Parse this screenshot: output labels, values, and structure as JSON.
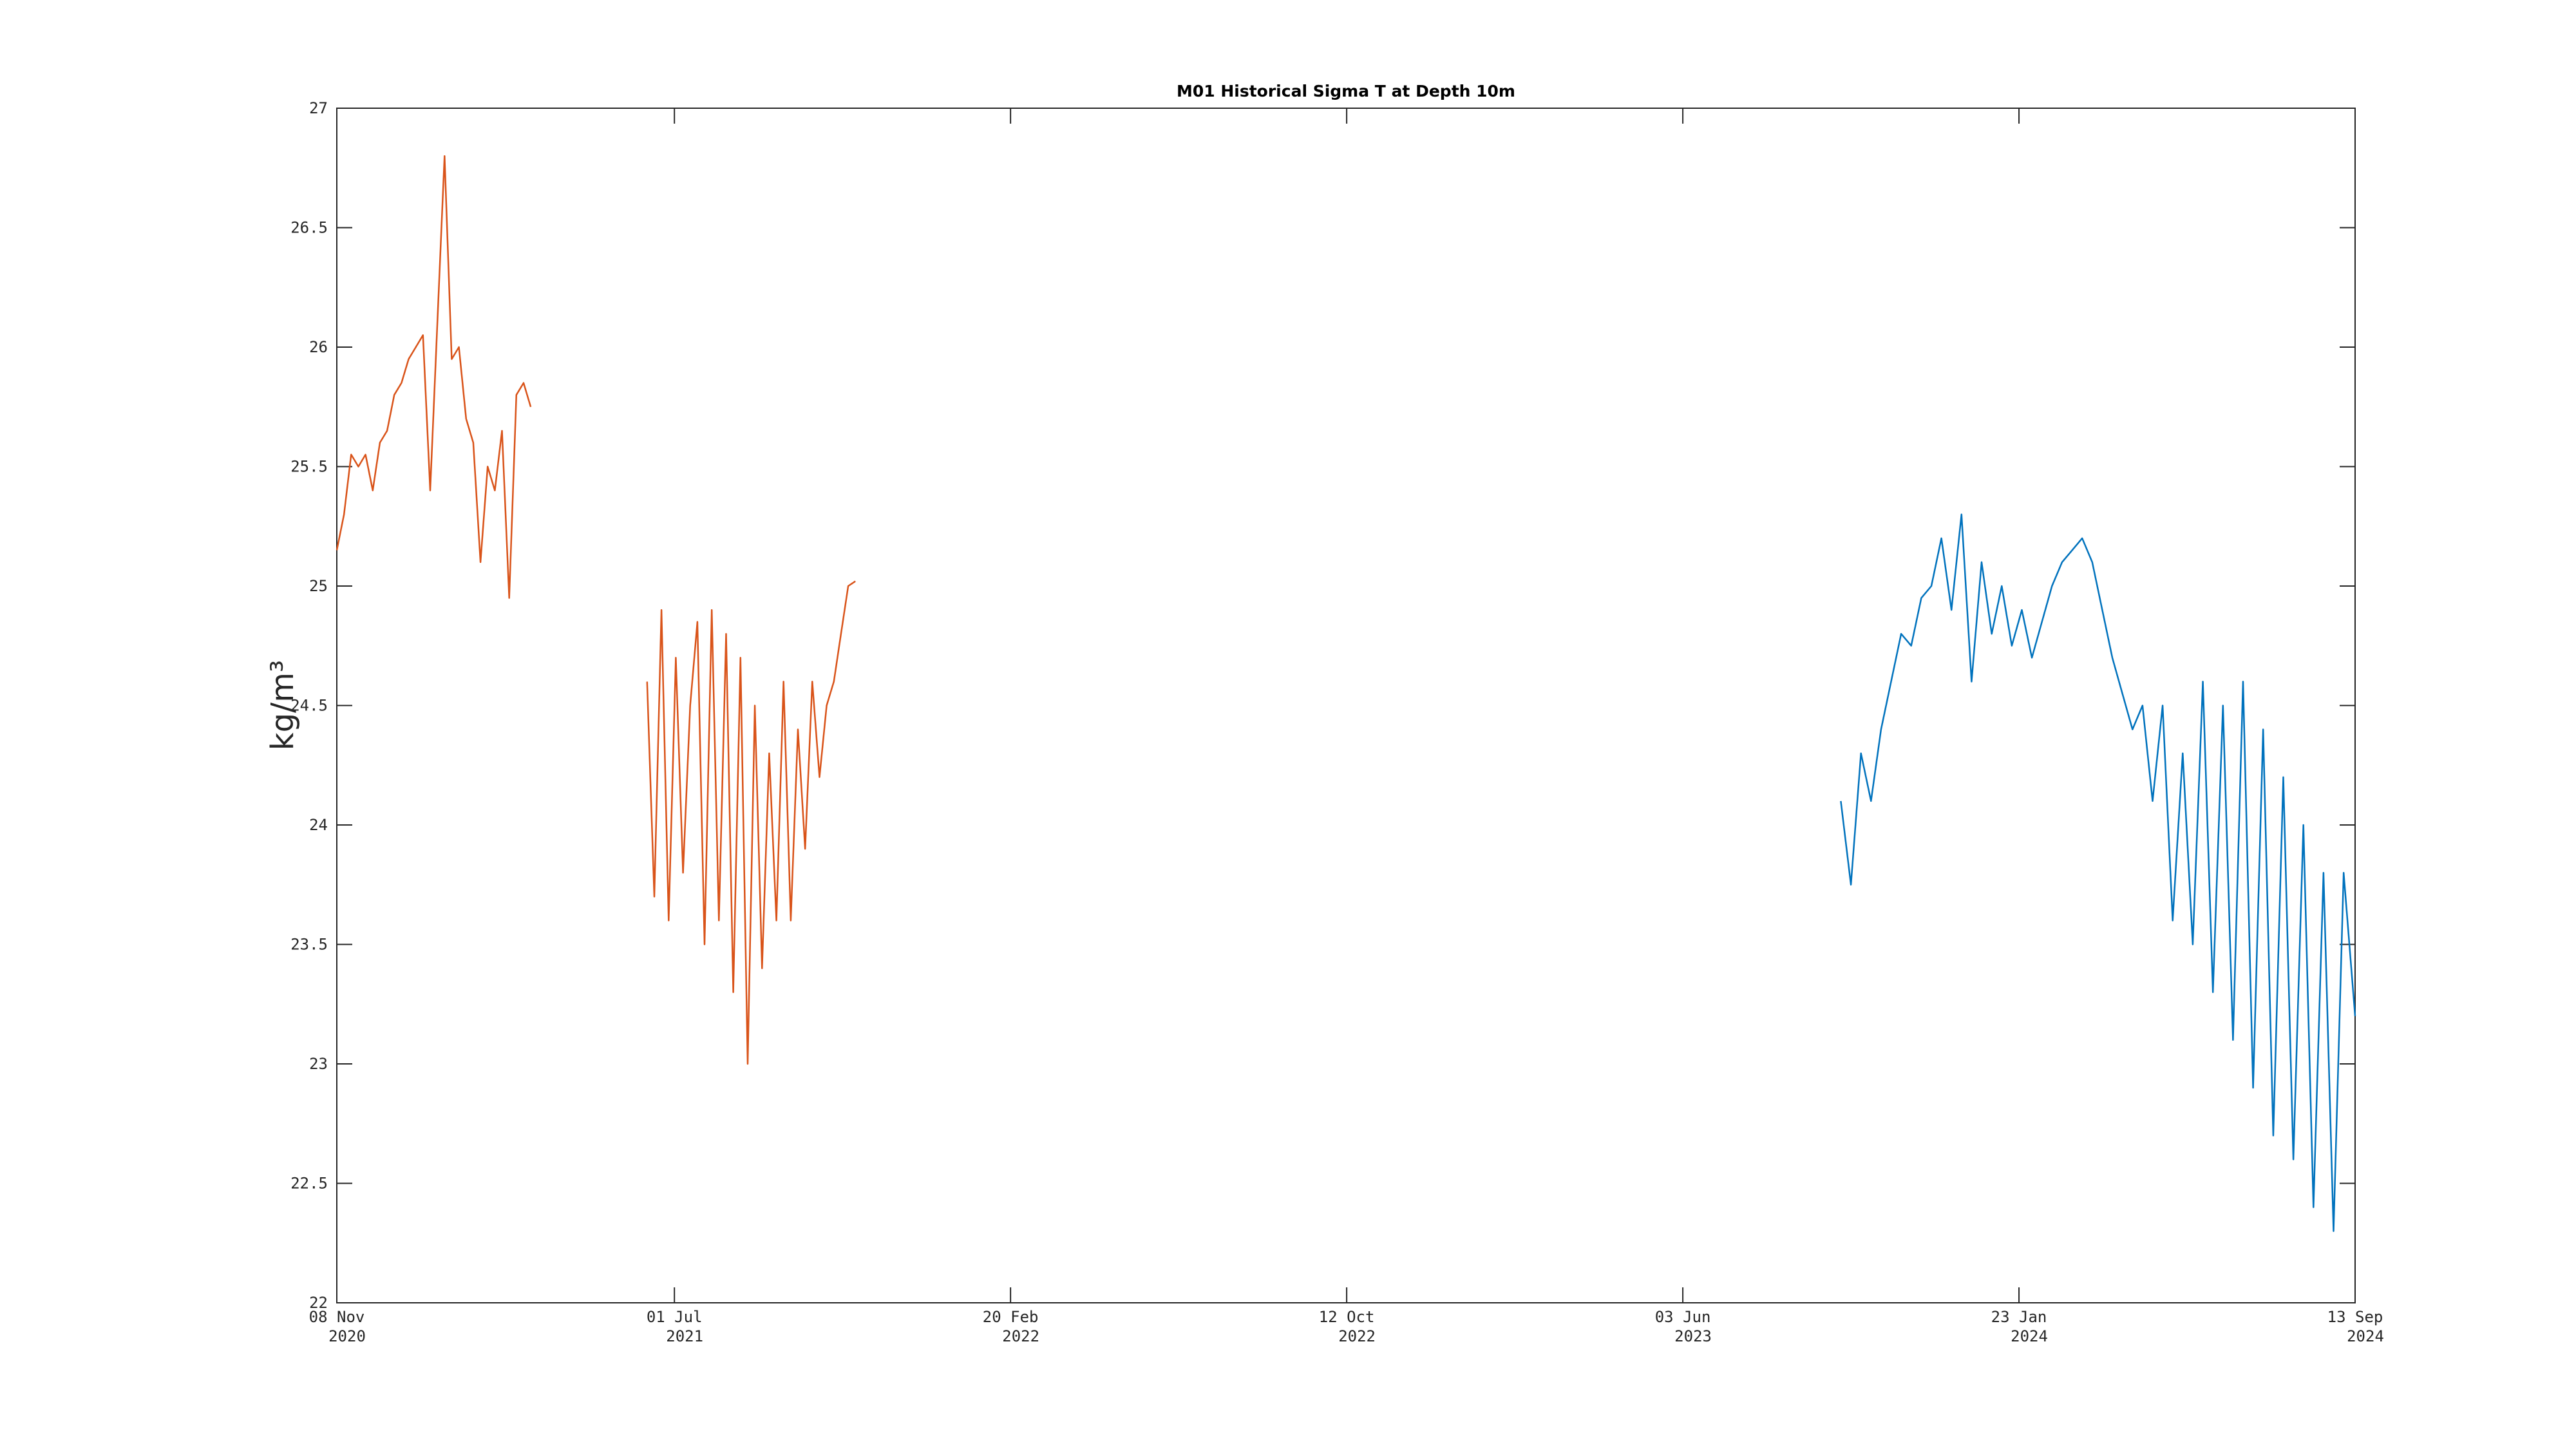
{
  "chart_data": {
    "type": "line",
    "title": "M01 Historical Sigma T at Depth 10m",
    "ylabel": "kg/m³",
    "xlim": [
      "2020-11-08",
      "2024-09-13"
    ],
    "xticks": [
      {
        "value": "2020-11-08",
        "label": [
          "08 Nov",
          "2020"
        ]
      },
      {
        "value": "2021-07-01",
        "label": [
          "01 Jul",
          "2021"
        ]
      },
      {
        "value": "2022-02-20",
        "label": [
          "20 Feb",
          "2022"
        ]
      },
      {
        "value": "2022-10-12",
        "label": [
          "12 Oct",
          "2022"
        ]
      },
      {
        "value": "2023-06-03",
        "label": [
          "03 Jun",
          "2023"
        ]
      },
      {
        "value": "2024-01-23",
        "label": [
          "23 Jan",
          "2024"
        ]
      },
      {
        "value": "2024-09-13",
        "label": [
          "13 Sep",
          "2024"
        ]
      }
    ],
    "ylim": [
      22,
      27
    ],
    "yticks": [
      22,
      22.5,
      23,
      23.5,
      24,
      24.5,
      25,
      25.5,
      26,
      26.5,
      27
    ],
    "grid": false,
    "series": [
      {
        "color": "#D95319",
        "x": [
          "2020-11-08",
          "2020-11-13",
          "2020-11-18",
          "2020-11-23",
          "2020-11-28",
          "2020-12-03",
          "2020-12-08",
          "2020-12-13",
          "2020-12-18",
          "2020-12-23",
          "2020-12-28",
          "2021-01-02",
          "2021-01-07",
          "2021-01-12",
          "2021-01-17",
          "2021-01-22",
          "2021-01-27",
          "2021-02-01",
          "2021-02-06",
          "2021-02-11",
          "2021-02-16",
          "2021-02-21",
          "2021-02-26",
          "2021-03-03",
          "2021-03-08",
          "2021-03-13",
          "2021-03-18",
          "2021-03-23",
          "2021-04-30",
          "2021-06-12",
          "2021-06-17",
          "2021-06-22",
          "2021-06-27",
          "2021-07-02",
          "2021-07-07",
          "2021-07-12",
          "2021-07-17",
          "2021-07-22",
          "2021-07-27",
          "2021-08-01",
          "2021-08-06",
          "2021-08-11",
          "2021-08-16",
          "2021-08-21",
          "2021-08-26",
          "2021-08-31",
          "2021-09-05",
          "2021-09-10",
          "2021-09-15",
          "2021-09-20",
          "2021-09-25",
          "2021-09-30",
          "2021-10-05",
          "2021-10-10",
          "2021-10-15",
          "2021-10-20",
          "2021-10-25",
          "2021-10-30",
          "2021-11-04"
        ],
        "values": [
          25.15,
          25.3,
          25.55,
          25.5,
          25.55,
          25.4,
          25.6,
          25.65,
          25.8,
          25.85,
          25.95,
          26.0,
          26.05,
          25.4,
          26.1,
          26.8,
          25.95,
          26.0,
          25.7,
          25.6,
          25.1,
          25.5,
          25.4,
          25.65,
          24.95,
          25.8,
          25.85,
          25.75,
          null,
          24.6,
          23.7,
          24.9,
          23.6,
          24.7,
          23.8,
          24.5,
          24.85,
          23.5,
          24.9,
          23.6,
          24.8,
          23.3,
          24.7,
          23.0,
          24.5,
          23.4,
          24.3,
          23.6,
          24.6,
          23.6,
          24.4,
          23.9,
          24.6,
          24.2,
          24.5,
          24.6,
          24.8,
          25.0,
          25.02
        ]
      },
      {
        "color": "#0072BD",
        "x": [
          "2023-09-21",
          "2023-09-28",
          "2023-10-05",
          "2023-10-12",
          "2023-10-19",
          "2023-10-26",
          "2023-11-02",
          "2023-11-09",
          "2023-11-16",
          "2023-11-23",
          "2023-11-30",
          "2023-12-07",
          "2023-12-14",
          "2023-12-21",
          "2023-12-28",
          "2024-01-04",
          "2024-01-11",
          "2024-01-18",
          "2024-01-25",
          "2024-02-01",
          "2024-02-08",
          "2024-02-15",
          "2024-02-22",
          "2024-02-29",
          "2024-03-07",
          "2024-03-14",
          "2024-03-21",
          "2024-03-28",
          "2024-04-04",
          "2024-04-11",
          "2024-04-18",
          "2024-04-25",
          "2024-05-02",
          "2024-05-09",
          "2024-05-16",
          "2024-05-23",
          "2024-05-30",
          "2024-06-06",
          "2024-06-13",
          "2024-06-20",
          "2024-06-27",
          "2024-07-04",
          "2024-07-11",
          "2024-07-18",
          "2024-07-25",
          "2024-08-01",
          "2024-08-08",
          "2024-08-15",
          "2024-08-22",
          "2024-08-29",
          "2024-09-05",
          "2024-09-13"
        ],
        "values": [
          24.1,
          23.75,
          24.3,
          24.1,
          24.4,
          24.6,
          24.8,
          24.75,
          24.95,
          25.0,
          25.2,
          24.9,
          25.3,
          24.6,
          25.1,
          24.8,
          25.0,
          24.75,
          24.9,
          24.7,
          24.85,
          25.0,
          25.1,
          25.15,
          25.2,
          25.1,
          24.9,
          24.7,
          24.55,
          24.4,
          24.5,
          24.1,
          24.5,
          23.6,
          24.3,
          23.5,
          24.6,
          23.3,
          24.5,
          23.1,
          24.6,
          22.9,
          24.4,
          22.7,
          24.2,
          22.6,
          24.0,
          22.4,
          23.8,
          22.3,
          23.8,
          23.2
        ]
      }
    ]
  }
}
